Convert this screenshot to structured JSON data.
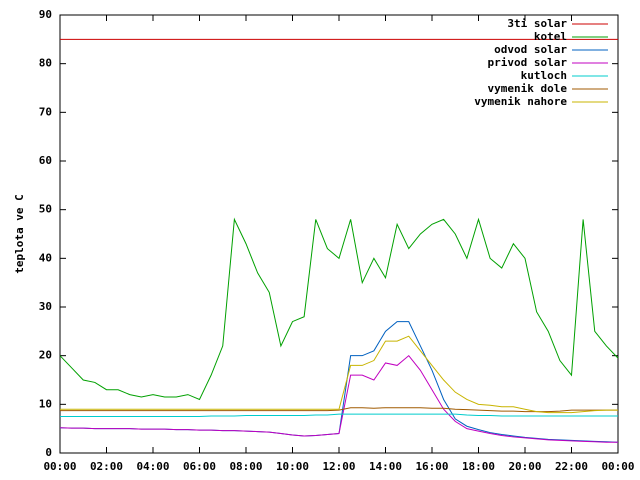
{
  "chart_data": {
    "type": "line",
    "ylabel": "teplota ve C",
    "x": [
      0,
      0.5,
      1,
      1.5,
      2,
      2.5,
      3,
      3.5,
      4,
      4.5,
      5,
      5.5,
      6,
      6.5,
      7,
      7.5,
      8,
      8.5,
      9,
      9.5,
      10,
      10.5,
      11,
      11.5,
      12,
      12.5,
      13,
      13.5,
      14,
      14.5,
      15,
      15.5,
      16,
      16.5,
      17,
      17.5,
      18,
      18.5,
      19,
      19.5,
      20,
      20.5,
      21,
      21.5,
      22,
      22.5,
      23,
      23.5,
      24
    ],
    "xlim": [
      0,
      24
    ],
    "xticks": [
      {
        "value": 0,
        "label": "00:00"
      },
      {
        "value": 2,
        "label": "02:00"
      },
      {
        "value": 4,
        "label": "04:00"
      },
      {
        "value": 6,
        "label": "06:00"
      },
      {
        "value": 8,
        "label": "08:00"
      },
      {
        "value": 10,
        "label": "10:00"
      },
      {
        "value": 12,
        "label": "12:00"
      },
      {
        "value": 14,
        "label": "14:00"
      },
      {
        "value": 16,
        "label": "16:00"
      },
      {
        "value": 18,
        "label": "18:00"
      },
      {
        "value": 20,
        "label": "20:00"
      },
      {
        "value": 22,
        "label": "22:00"
      },
      {
        "value": 24,
        "label": "00:00"
      }
    ],
    "ylim": [
      0,
      90
    ],
    "yticks": [
      0,
      10,
      20,
      30,
      40,
      50,
      60,
      70,
      80,
      90
    ],
    "legend": "top-right",
    "series": [
      {
        "name": "3ti solar",
        "color": "#cc0000",
        "values": [
          85,
          85,
          85,
          85,
          85,
          85,
          85,
          85,
          85,
          85,
          85,
          85,
          85,
          85,
          85,
          85,
          85,
          85,
          85,
          85,
          85,
          85,
          85,
          85,
          85,
          85,
          85,
          85,
          85,
          85,
          85,
          85,
          85,
          85,
          85,
          85,
          85,
          85,
          85,
          85,
          85,
          85,
          85,
          85,
          85,
          85,
          85,
          85,
          85
        ]
      },
      {
        "name": "kotel",
        "color": "#00a000",
        "values": [
          20,
          17.5,
          15,
          14.5,
          13,
          13,
          12,
          11.5,
          12,
          11.5,
          11.5,
          12,
          11,
          16,
          22,
          48,
          43,
          37,
          33,
          22,
          27,
          28,
          48,
          42,
          40,
          48,
          35,
          40,
          36,
          47,
          42,
          45,
          47,
          48,
          45,
          40,
          48,
          40,
          38,
          43,
          40,
          29,
          25,
          19,
          16,
          48,
          25,
          22,
          19.5
        ]
      },
      {
        "name": "odvod solar",
        "color": "#0060c0",
        "values": [
          5.2,
          5.1,
          5.1,
          5,
          5,
          5,
          5,
          4.9,
          4.9,
          4.9,
          4.8,
          4.8,
          4.7,
          4.7,
          4.6,
          4.6,
          4.5,
          4.4,
          4.3,
          4,
          3.7,
          3.5,
          3.6,
          3.8,
          4,
          20,
          20,
          21,
          25,
          27,
          27,
          22,
          17,
          11,
          7,
          5.5,
          4.8,
          4.2,
          3.8,
          3.5,
          3.2,
          3,
          2.8,
          2.7,
          2.6,
          2.5,
          2.4,
          2.3,
          2.2
        ]
      },
      {
        "name": "privod solar",
        "color": "#c000c0",
        "values": [
          5.2,
          5.1,
          5.1,
          5,
          5,
          5,
          5,
          4.9,
          4.9,
          4.9,
          4.8,
          4.8,
          4.7,
          4.7,
          4.6,
          4.6,
          4.5,
          4.4,
          4.3,
          4,
          3.7,
          3.5,
          3.6,
          3.8,
          4,
          16,
          16,
          15,
          18.5,
          18,
          20,
          17,
          13,
          9,
          6.5,
          5,
          4.5,
          4,
          3.6,
          3.3,
          3.1,
          2.9,
          2.7,
          2.6,
          2.5,
          2.4,
          2.3,
          2.2,
          2.2
        ]
      },
      {
        "name": "kutloch",
        "color": "#00cccc",
        "values": [
          7.5,
          7.5,
          7.5,
          7.5,
          7.5,
          7.5,
          7.5,
          7.5,
          7.5,
          7.5,
          7.5,
          7.5,
          7.5,
          7.6,
          7.6,
          7.6,
          7.7,
          7.7,
          7.7,
          7.7,
          7.7,
          7.7,
          7.8,
          7.8,
          8,
          8,
          8,
          8,
          8,
          8,
          8,
          8,
          8,
          8,
          8,
          7.8,
          7.7,
          7.7,
          7.6,
          7.6,
          7.6,
          7.6,
          7.6,
          7.6,
          7.6,
          7.6,
          7.6,
          7.6,
          7.6
        ]
      },
      {
        "name": "vymenik dole",
        "color": "#a05a00",
        "values": [
          8.7,
          8.7,
          8.7,
          8.7,
          8.7,
          8.7,
          8.7,
          8.7,
          8.7,
          8.7,
          8.7,
          8.7,
          8.7,
          8.7,
          8.7,
          8.7,
          8.7,
          8.7,
          8.7,
          8.7,
          8.7,
          8.7,
          8.7,
          8.7,
          8.8,
          9.3,
          9.3,
          9.2,
          9.3,
          9.3,
          9.3,
          9.3,
          9.2,
          9.2,
          9,
          8.9,
          8.8,
          8.7,
          8.6,
          8.6,
          8.5,
          8.5,
          8.5,
          8.6,
          8.8,
          8.8,
          8.8,
          8.8,
          8.8
        ]
      },
      {
        "name": "vymenik nahore",
        "color": "#c8b400",
        "values": [
          9,
          9,
          9,
          9,
          9,
          9,
          9,
          9,
          9,
          9,
          9,
          9,
          9,
          9,
          9,
          9,
          9,
          9,
          9,
          9,
          9,
          9,
          9,
          9,
          9,
          18,
          18,
          19,
          23,
          23,
          24,
          21,
          18,
          15,
          12.5,
          11,
          10,
          9.8,
          9.5,
          9.5,
          9,
          8.5,
          8.3,
          8.3,
          8.3,
          8.5,
          8.7,
          8.8,
          8.8
        ]
      }
    ]
  }
}
